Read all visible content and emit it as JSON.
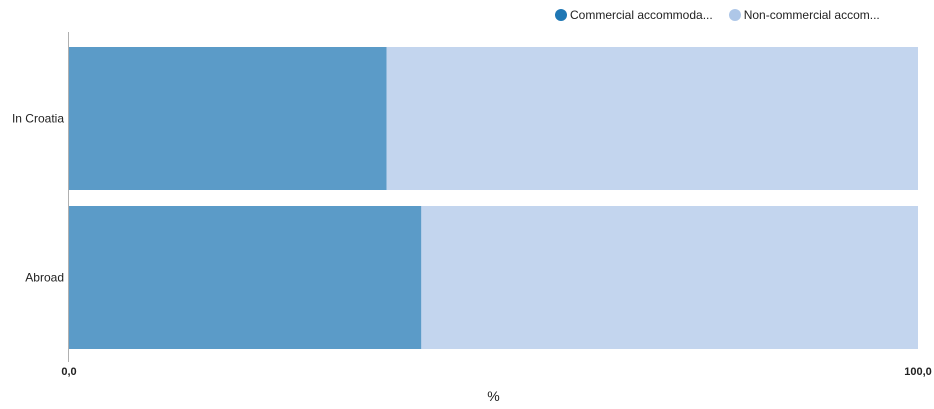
{
  "chart_data": {
    "type": "bar",
    "orientation": "horizontal",
    "stacked": true,
    "normalized": "percent",
    "categories": [
      "In Croatia",
      "Abroad"
    ],
    "series": [
      {
        "name": "Commercial accommoda...",
        "values": [
          37.4,
          41.5
        ],
        "color": "#5b9bc8",
        "legend_color": "#1f77b4"
      },
      {
        "name": "Non-commercial accom...",
        "values": [
          62.6,
          58.5
        ],
        "color": "#c3d5ee",
        "legend_color": "#aec7e8"
      }
    ],
    "xlim": [
      0,
      100
    ],
    "x_tick_labels": [
      "0,0",
      "100,0"
    ],
    "xlabel": "%",
    "ylabel": "",
    "grid": false,
    "legend_position": "top-right"
  }
}
